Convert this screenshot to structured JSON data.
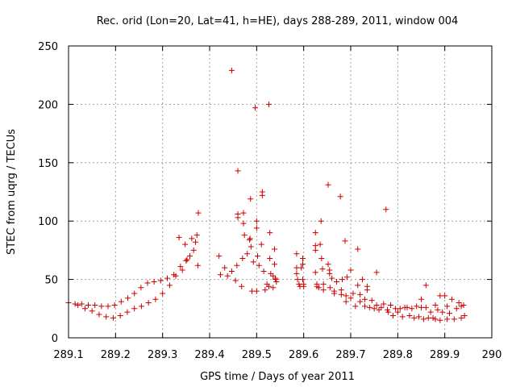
{
  "chart_data": {
    "type": "scatter",
    "title": "Rec. orid (Lon=20, Lat=41, h=HE), days 288-289, 2011, window 004",
    "xlabel": "GPS time / Days of year 2011",
    "ylabel": "STEC from uqrg / TECUs",
    "xlim": [
      289.1,
      290
    ],
    "ylim": [
      0,
      250
    ],
    "xticks": [
      "289.1",
      "289.2",
      "289.3",
      "289.4",
      "289.5",
      "289.6",
      "289.7",
      "289.8",
      "289.9",
      "290"
    ],
    "yticks": [
      "0",
      "50",
      "100",
      "150",
      "200",
      "250"
    ],
    "grid": true,
    "marker": "+",
    "color": "#cc0000",
    "series": [
      {
        "name": "STEC",
        "points": [
          [
            289.1,
            30
          ],
          [
            289.114,
            29
          ],
          [
            289.128,
            29
          ],
          [
            289.142,
            28
          ],
          [
            289.156,
            28
          ],
          [
            289.17,
            27
          ],
          [
            289.184,
            27
          ],
          [
            289.198,
            28
          ],
          [
            289.212,
            31
          ],
          [
            289.226,
            34
          ],
          [
            289.24,
            38
          ],
          [
            289.254,
            43
          ],
          [
            289.268,
            47
          ],
          [
            289.282,
            48
          ],
          [
            289.296,
            49
          ],
          [
            289.31,
            51
          ],
          [
            289.324,
            54
          ],
          [
            289.338,
            61
          ],
          [
            289.352,
            67
          ],
          [
            289.366,
            75
          ],
          [
            289.373,
            88
          ],
          [
            289.12,
            28
          ],
          [
            289.135,
            25
          ],
          [
            289.15,
            23
          ],
          [
            289.165,
            20
          ],
          [
            289.18,
            18
          ],
          [
            289.195,
            17
          ],
          [
            289.21,
            19
          ],
          [
            289.225,
            22
          ],
          [
            289.24,
            25
          ],
          [
            289.255,
            27
          ],
          [
            289.27,
            30
          ],
          [
            289.285,
            33
          ],
          [
            289.3,
            38
          ],
          [
            289.315,
            45
          ],
          [
            289.328,
            53
          ],
          [
            289.342,
            58
          ],
          [
            289.358,
            70
          ],
          [
            289.37,
            82
          ],
          [
            289.376,
            107
          ],
          [
            289.335,
            86
          ],
          [
            289.348,
            80
          ],
          [
            289.362,
            85
          ],
          [
            289.35,
            66
          ],
          [
            289.375,
            62
          ],
          [
            289.42,
            70
          ],
          [
            289.423,
            54
          ],
          [
            289.432,
            60
          ],
          [
            289.438,
            53
          ],
          [
            289.447,
            57
          ],
          [
            289.447,
            229
          ],
          [
            289.455,
            49
          ],
          [
            289.458,
            62
          ],
          [
            289.46,
            143
          ],
          [
            289.46,
            103
          ],
          [
            289.46,
            106
          ],
          [
            289.468,
            44
          ],
          [
            289.47,
            68
          ],
          [
            289.472,
            98
          ],
          [
            289.472,
            107
          ],
          [
            289.474,
            88
          ],
          [
            289.48,
            72
          ],
          [
            289.485,
            84
          ],
          [
            289.486,
            85
          ],
          [
            289.487,
            119
          ],
          [
            289.488,
            78
          ],
          [
            289.49,
            40
          ],
          [
            289.493,
            65
          ],
          [
            289.497,
            197
          ],
          [
            289.5,
            40
          ],
          [
            289.5,
            94
          ],
          [
            289.5,
            100
          ],
          [
            289.502,
            70
          ],
          [
            289.505,
            62
          ],
          [
            289.51,
            80
          ],
          [
            289.512,
            125
          ],
          [
            289.512,
            122
          ],
          [
            289.515,
            57
          ],
          [
            289.518,
            41
          ],
          [
            289.522,
            46
          ],
          [
            289.526,
            44
          ],
          [
            289.526,
            200
          ],
          [
            289.528,
            90
          ],
          [
            289.528,
            68
          ],
          [
            289.53,
            55
          ],
          [
            289.535,
            53
          ],
          [
            289.535,
            43
          ],
          [
            289.538,
            76
          ],
          [
            289.538,
            63
          ],
          [
            289.54,
            51
          ],
          [
            289.542,
            48
          ],
          [
            289.54,
            50
          ],
          [
            289.585,
            72
          ],
          [
            289.585,
            60
          ],
          [
            289.585,
            55
          ],
          [
            289.587,
            50
          ],
          [
            289.59,
            46
          ],
          [
            289.592,
            44
          ],
          [
            289.595,
            60
          ],
          [
            289.598,
            68
          ],
          [
            289.598,
            63
          ],
          [
            289.598,
            50
          ],
          [
            289.6,
            46
          ],
          [
            289.6,
            44
          ],
          [
            289.625,
            90
          ],
          [
            289.625,
            79
          ],
          [
            289.625,
            75
          ],
          [
            289.625,
            56
          ],
          [
            289.628,
            46
          ],
          [
            289.628,
            44
          ],
          [
            289.632,
            43
          ],
          [
            289.635,
            80
          ],
          [
            289.637,
            100
          ],
          [
            289.638,
            68
          ],
          [
            289.64,
            59
          ],
          [
            289.642,
            46
          ],
          [
            289.642,
            41
          ],
          [
            289.652,
            131
          ],
          [
            289.652,
            63
          ],
          [
            289.655,
            55
          ],
          [
            289.655,
            58
          ],
          [
            289.656,
            43
          ],
          [
            289.66,
            51
          ],
          [
            289.665,
            40
          ],
          [
            289.665,
            38
          ],
          [
            289.67,
            48
          ],
          [
            289.678,
            121
          ],
          [
            289.68,
            37
          ],
          [
            289.68,
            41
          ],
          [
            289.682,
            50
          ],
          [
            289.688,
            83
          ],
          [
            289.69,
            36
          ],
          [
            289.69,
            31
          ],
          [
            289.692,
            52
          ],
          [
            289.7,
            58
          ],
          [
            289.7,
            34
          ],
          [
            289.705,
            38
          ],
          [
            289.71,
            27
          ],
          [
            289.715,
            76
          ],
          [
            289.715,
            45
          ],
          [
            289.72,
            31
          ],
          [
            289.72,
            37
          ],
          [
            289.725,
            50
          ],
          [
            289.73,
            27
          ],
          [
            289.73,
            33
          ],
          [
            289.735,
            41
          ],
          [
            289.735,
            44
          ],
          [
            289.74,
            26
          ],
          [
            289.745,
            32
          ],
          [
            289.75,
            25
          ],
          [
            289.755,
            56
          ],
          [
            289.755,
            28
          ],
          [
            289.76,
            24
          ],
          [
            289.765,
            26
          ],
          [
            289.77,
            29
          ],
          [
            289.775,
            110
          ],
          [
            289.778,
            24
          ],
          [
            289.78,
            22
          ],
          [
            289.785,
            28
          ],
          [
            289.79,
            19
          ],
          [
            289.795,
            25
          ],
          [
            289.8,
            22
          ],
          [
            289.805,
            25
          ],
          [
            289.81,
            18
          ],
          [
            289.815,
            26
          ],
          [
            289.82,
            26
          ],
          [
            289.825,
            19
          ],
          [
            289.83,
            25
          ],
          [
            289.835,
            17
          ],
          [
            289.84,
            27
          ],
          [
            289.845,
            18
          ],
          [
            289.85,
            33
          ],
          [
            289.85,
            26
          ],
          [
            289.855,
            16
          ],
          [
            289.86,
            45
          ],
          [
            289.86,
            26
          ],
          [
            289.865,
            17
          ],
          [
            289.87,
            22
          ],
          [
            289.875,
            17
          ],
          [
            289.88,
            16
          ],
          [
            289.88,
            28
          ],
          [
            289.885,
            24
          ],
          [
            289.89,
            15
          ],
          [
            289.89,
            36
          ],
          [
            289.895,
            22
          ],
          [
            289.9,
            36
          ],
          [
            289.905,
            16
          ],
          [
            289.905,
            27
          ],
          [
            289.91,
            21
          ],
          [
            289.915,
            33
          ],
          [
            289.92,
            16
          ],
          [
            289.925,
            25
          ],
          [
            289.93,
            30
          ],
          [
            289.935,
            17
          ],
          [
            289.935,
            27
          ],
          [
            289.94,
            28
          ],
          [
            289.94,
            28
          ],
          [
            289.942,
            19
          ]
        ]
      }
    ]
  }
}
